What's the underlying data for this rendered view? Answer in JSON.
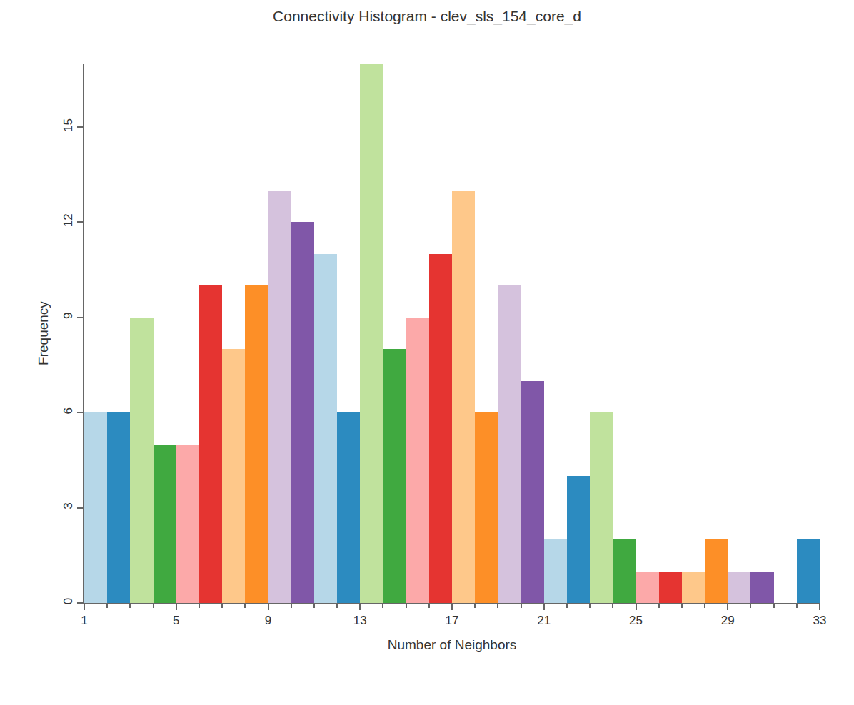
{
  "chart_data": {
    "type": "histogram",
    "title": "Connectivity Histogram - clev_sls_154_core_d",
    "x_label": "Number of Neighbors",
    "y_label": "Frequency",
    "bins": [
      1,
      2,
      3,
      4,
      5,
      6,
      7,
      8,
      9,
      10,
      11,
      12,
      13,
      14,
      15,
      16,
      17,
      18,
      19,
      20,
      21,
      22,
      23,
      24,
      25,
      26,
      27,
      28,
      29,
      30,
      31,
      32,
      33
    ],
    "values": [
      6,
      6,
      9,
      5,
      5,
      10,
      8,
      10,
      13,
      12,
      11,
      6,
      17,
      8,
      9,
      11,
      13,
      6,
      10,
      7,
      2,
      4,
      6,
      2,
      1,
      1,
      1,
      2,
      1,
      1,
      0,
      2
    ],
    "colors": [
      "#b6d7e8",
      "#2c8bc0",
      "#c0e29d",
      "#40a940",
      "#fca9a9",
      "#e53431",
      "#fec88a",
      "#fd8f27",
      "#d5c2dd",
      "#8057a8",
      "#b6d7e8",
      "#2c8bc0",
      "#c0e29d",
      "#40a940",
      "#fca9a9",
      "#e53431",
      "#fec88a",
      "#fd8f27",
      "#d5c2dd",
      "#8057a8",
      "#b6d7e8",
      "#2c8bc0",
      "#c0e29d",
      "#40a940",
      "#fca9a9",
      "#e53431",
      "#fec88a",
      "#fd8f27",
      "#d5c2dd",
      "#8057a8",
      "#b6d7e8",
      "#2c8bc0"
    ],
    "xlim": [
      1,
      33
    ],
    "xticks": [
      1,
      5,
      9,
      13,
      17,
      21,
      25,
      29,
      33
    ],
    "ylim": [
      0,
      17
    ],
    "yticks": [
      0,
      3,
      6,
      9,
      12,
      15
    ],
    "grid": false
  }
}
